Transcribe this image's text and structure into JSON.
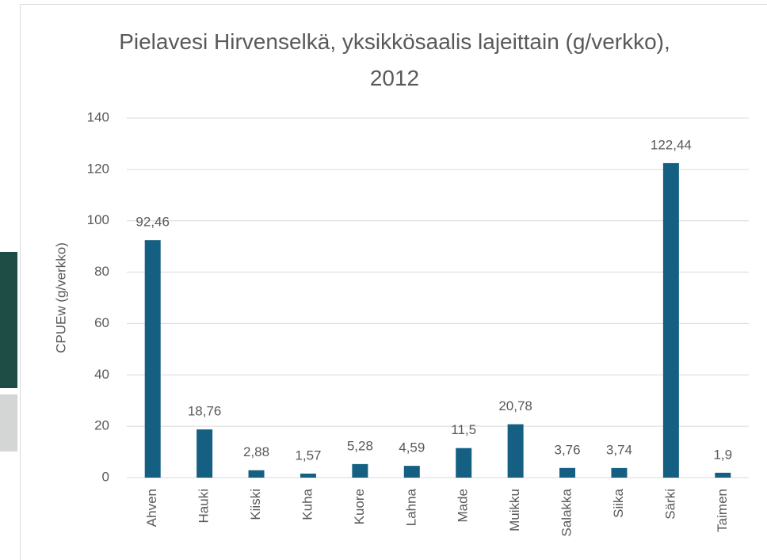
{
  "chart_data": {
    "type": "bar",
    "title": "Pielavesi Hirvenselkä, yksikkösaalis lajeittain (g/verkko), 2012",
    "y_label": "CPUEw (g/verkko)",
    "categories": [
      "Ahven",
      "Hauki",
      "Kiiski",
      "Kuha",
      "Kuore",
      "Lahna",
      "Made",
      "Muikku",
      "Salakka",
      "Siika",
      "Särki",
      "Taimen"
    ],
    "values": [
      92.46,
      18.76,
      2.88,
      1.57,
      5.28,
      4.59,
      11.5,
      20.78,
      3.76,
      3.74,
      122.44,
      1.9
    ],
    "value_labels": [
      "92,46",
      "18,76",
      "2,88",
      "1,57",
      "5,28",
      "4,59",
      "11,5",
      "20,78",
      "3,76",
      "3,74",
      "122,44",
      "1,9"
    ],
    "color": "#156082",
    "ylim": [
      0,
      140
    ],
    "yticks": [
      0,
      20,
      40,
      60,
      80,
      100,
      120,
      140
    ],
    "grid": true
  }
}
